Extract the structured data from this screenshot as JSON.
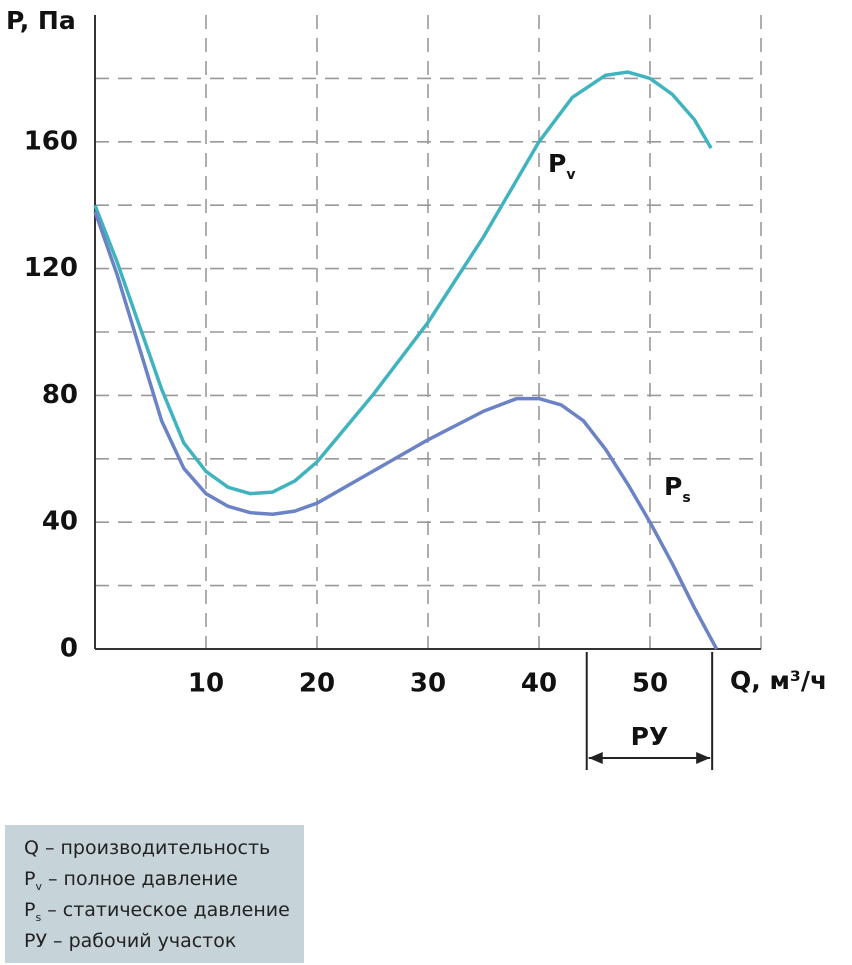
{
  "chart_data": {
    "type": "line",
    "y_label": "P, Па",
    "x_label": "Q, м³/ч",
    "xlim": [
      0,
      60
    ],
    "ylim": [
      0,
      200
    ],
    "xticks": [
      10,
      20,
      30,
      40,
      50
    ],
    "yticks": [
      0,
      40,
      80,
      120,
      160
    ],
    "grid": true,
    "grid_xticks": [
      10,
      20,
      30,
      40,
      50,
      60
    ],
    "grid_yticks": [
      20,
      40,
      60,
      80,
      100,
      120,
      140,
      160,
      180
    ],
    "series": [
      {
        "name": "P",
        "sub": "v",
        "color": "#40b3bf",
        "x": [
          0,
          2,
          4,
          6,
          8,
          10,
          12,
          14,
          16,
          18,
          20,
          25,
          30,
          35,
          40,
          43,
          46,
          48,
          50,
          52,
          54,
          55.5
        ],
        "values": [
          140,
          122,
          102,
          82,
          65,
          56,
          51,
          49,
          49.5,
          53,
          59,
          80,
          103,
          130,
          160,
          174,
          181,
          182,
          180,
          175,
          167,
          158
        ]
      },
      {
        "name": "P",
        "sub": "s",
        "color": "#6b82c5",
        "x": [
          0,
          2,
          4,
          6,
          8,
          10,
          12,
          14,
          16,
          18,
          20,
          25,
          30,
          35,
          38,
          40,
          42,
          44,
          46,
          48,
          50,
          52,
          54,
          56
        ],
        "values": [
          138,
          118,
          95,
          72,
          57,
          49,
          45,
          43,
          42.5,
          43.5,
          46,
          56,
          66,
          75,
          79,
          79,
          77,
          72,
          63,
          52,
          40,
          27,
          13,
          0
        ]
      }
    ],
    "annotation": {
      "text": "РУ",
      "range": [
        44.3,
        55.6
      ]
    },
    "legend": [
      {
        "term": "Q",
        "text": "– производительность"
      },
      {
        "term": "P",
        "sub": "v",
        "text": "– полное давление"
      },
      {
        "term": "P",
        "sub": "s",
        "text": "– статическое давление"
      },
      {
        "term": "РУ",
        "text": "– рабочий участок"
      }
    ]
  }
}
